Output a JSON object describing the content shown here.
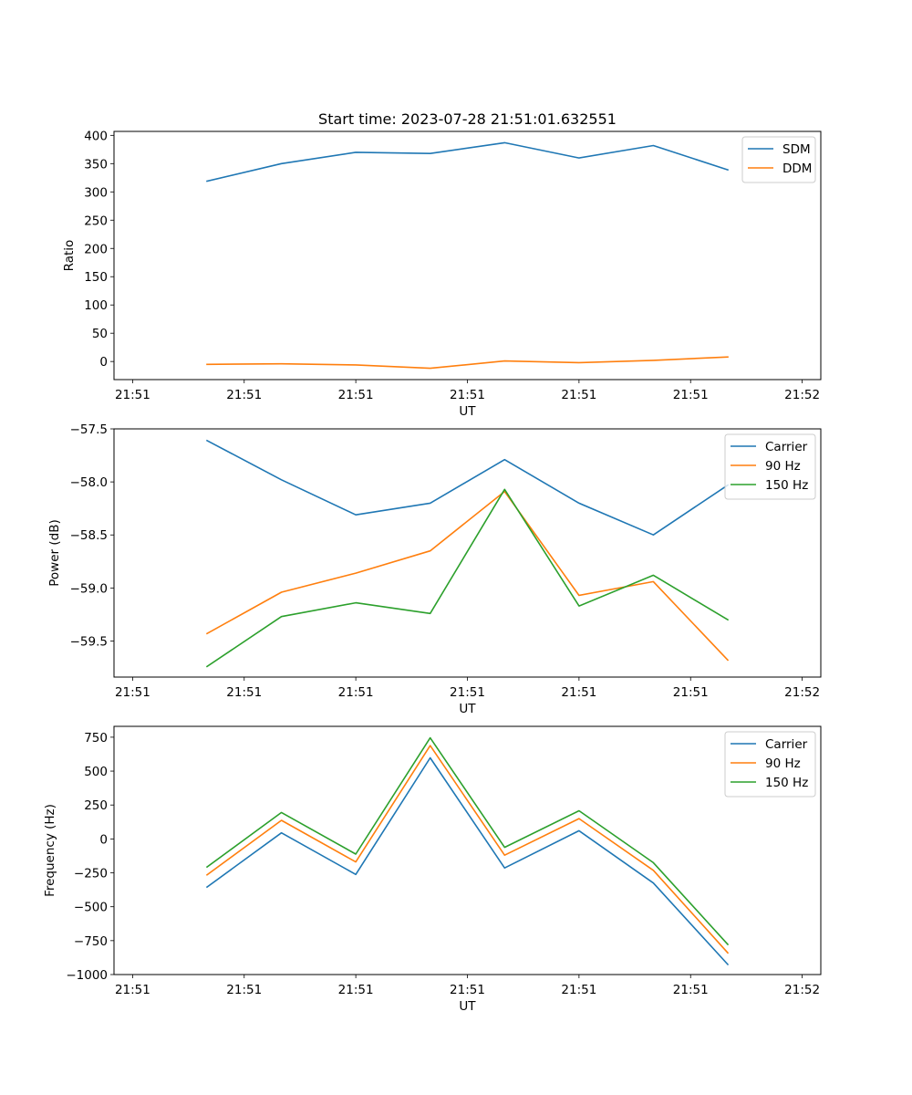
{
  "title": "Start time: 2023-07-28 21:51:01.632551",
  "colors": {
    "blue": "#1f77b4",
    "orange": "#ff7f0e",
    "green": "#2ca02c"
  },
  "chart_data": [
    {
      "type": "line",
      "xlabel": "UT",
      "ylabel": "Ratio",
      "x": [
        1,
        2,
        3,
        4,
        5,
        6,
        7,
        8
      ],
      "xlim": [
        -0.25,
        9.25
      ],
      "ylim": [
        -32,
        407
      ],
      "xticks": [
        0,
        1.5,
        3,
        4.5,
        6,
        7.5,
        9
      ],
      "xtick_labels": [
        "21:51",
        "21:51",
        "21:51",
        "21:51",
        "21:51",
        "21:51",
        "21:52"
      ],
      "yticks": [
        400,
        350,
        300,
        250,
        200,
        150,
        100,
        50,
        0
      ],
      "ytick_labels": [
        "400",
        "350",
        "300",
        "250",
        "200",
        "150",
        "100",
        "50",
        "0"
      ],
      "legend": "top-right",
      "series": [
        {
          "name": "SDM",
          "color": "#1f77b4",
          "values": [
            319,
            350,
            370,
            368,
            387,
            360,
            382,
            339
          ]
        },
        {
          "name": "DDM",
          "color": "#ff7f0e",
          "values": [
            -5,
            -4,
            -6,
            -12,
            1,
            -2,
            2,
            8
          ]
        }
      ]
    },
    {
      "type": "line",
      "xlabel": "UT",
      "ylabel": "Power (dB)",
      "x": [
        1,
        2,
        3,
        4,
        5,
        6,
        7,
        8
      ],
      "xlim": [
        -0.25,
        9.25
      ],
      "ylim": [
        -59.84,
        -57.5
      ],
      "xticks": [
        0,
        1.5,
        3,
        4.5,
        6,
        7.5,
        9
      ],
      "xtick_labels": [
        "21:51",
        "21:51",
        "21:51",
        "21:51",
        "21:51",
        "21:51",
        "21:52"
      ],
      "yticks": [
        -57.5,
        -58.0,
        -58.5,
        -59.0,
        -59.5
      ],
      "ytick_labels": [
        "−57.5",
        "−58.0",
        "−58.5",
        "−59.0",
        "−59.5"
      ],
      "legend": "top-right",
      "series": [
        {
          "name": "Carrier",
          "color": "#1f77b4",
          "values": [
            -57.61,
            -57.98,
            -58.31,
            -58.2,
            -57.79,
            -58.2,
            -58.5,
            -58.03
          ]
        },
        {
          "name": "90 Hz",
          "color": "#ff7f0e",
          "values": [
            -59.43,
            -59.04,
            -58.86,
            -58.65,
            -58.09,
            -59.07,
            -58.94,
            -59.68
          ]
        },
        {
          "name": "150 Hz",
          "color": "#2ca02c",
          "values": [
            -59.74,
            -59.27,
            -59.14,
            -59.24,
            -58.07,
            -59.17,
            -58.88,
            -59.3
          ]
        }
      ]
    },
    {
      "type": "line",
      "xlabel": "UT",
      "ylabel": "Frequency (Hz)",
      "x": [
        1,
        2,
        3,
        4,
        5,
        6,
        7,
        8
      ],
      "xlim": [
        -0.25,
        9.25
      ],
      "ylim": [
        -1000,
        830
      ],
      "xticks": [
        0,
        1.5,
        3,
        4.5,
        6,
        7.5,
        9
      ],
      "xtick_labels": [
        "21:51",
        "21:51",
        "21:51",
        "21:51",
        "21:51",
        "21:51",
        "21:52"
      ],
      "yticks": [
        750,
        500,
        250,
        0,
        -250,
        -500,
        -750,
        -1000
      ],
      "ytick_labels": [
        "750",
        "500",
        "250",
        "0",
        "−250",
        "−500",
        "−750",
        "−1000"
      ],
      "legend": "top-right",
      "series": [
        {
          "name": "Carrier",
          "color": "#1f77b4",
          "values": [
            -355,
            45,
            -262,
            598,
            -214,
            60,
            -325,
            -925
          ]
        },
        {
          "name": "90 Hz",
          "color": "#ff7f0e",
          "values": [
            -265,
            137,
            -170,
            688,
            -120,
            150,
            -232,
            -840
          ]
        },
        {
          "name": "150 Hz",
          "color": "#2ca02c",
          "values": [
            -207,
            195,
            -112,
            745,
            -62,
            208,
            -175,
            -778
          ]
        }
      ]
    }
  ]
}
